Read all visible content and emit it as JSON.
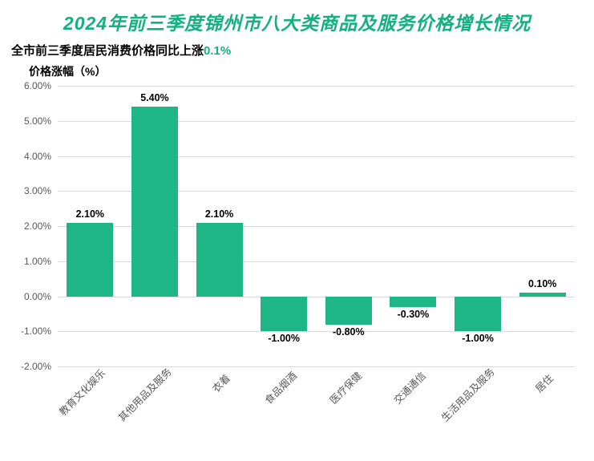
{
  "title": {
    "text": "2024年前三季度锦州市八大类商品及服务价格增长情况",
    "color": "#14b082",
    "fontsize": 23
  },
  "subtitle": {
    "text": "全市前三季度居民消费价格同比上涨",
    "pct_text": "0.1%",
    "text_color": "#000000",
    "pct_color": "#14b082",
    "fontsize": 15
  },
  "ylabel": {
    "text": "价格涨幅（%）",
    "fontsize": 14
  },
  "chart": {
    "type": "bar",
    "ylim_min": -2.0,
    "ylim_max": 6.0,
    "ytick_step": 1.0,
    "yticks": [
      "6.00%",
      "5.00%",
      "4.00%",
      "3.00%",
      "2.00%",
      "1.00%",
      "0.00%",
      "-1.00%",
      "-2.00%"
    ],
    "grid_color": "#d9d9d9",
    "axis_color": "#bfbfbf",
    "bar_color": "#1fb687",
    "background_color": "#ffffff",
    "tick_label_color": "#595959",
    "value_label_color": "#000000",
    "value_label_fontsize": 12.5,
    "categories": [
      "教育文化娱乐",
      "其他用品及服务",
      "衣着",
      "食品烟酒",
      "医疗保健",
      "交通通信",
      "生活用品及服务",
      "居住"
    ],
    "values": [
      2.1,
      5.4,
      2.1,
      -1.0,
      -0.8,
      -0.3,
      -1.0,
      0.1
    ],
    "value_labels": [
      "2.10%",
      "5.40%",
      "2.10%",
      "-1.00%",
      "-0.80%",
      "-0.30%",
      "-1.00%",
      "0.10%"
    ],
    "bar_width": 0.72
  }
}
